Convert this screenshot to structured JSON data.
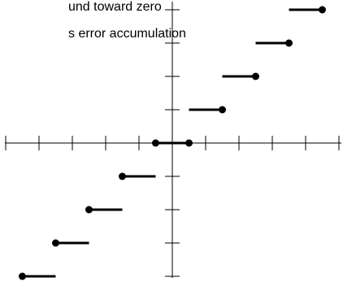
{
  "captions": {
    "line1": "und toward zero",
    "line2": "s error accumulation"
  },
  "colors": {
    "ink": "#000000",
    "background": "#ffffff"
  },
  "chart_data": {
    "type": "step",
    "rule": "truncation (round toward zero)",
    "xlim": [
      -5,
      5
    ],
    "ylim": [
      -4,
      4
    ],
    "x_ticks": [
      -5,
      -4,
      -3,
      -2,
      -1,
      1,
      2,
      3,
      4,
      5
    ],
    "y_ticks": [
      -4,
      -3,
      -2,
      -1,
      1,
      2,
      3,
      4
    ],
    "segments": [
      {
        "x_start": -4.5,
        "x_end": -3.5,
        "y": -4,
        "filled_end": "left"
      },
      {
        "x_start": -3.5,
        "x_end": -2.5,
        "y": -3,
        "filled_end": "left"
      },
      {
        "x_start": -2.5,
        "x_end": -1.5,
        "y": -2,
        "filled_end": "left"
      },
      {
        "x_start": -1.5,
        "x_end": -0.5,
        "y": -1,
        "filled_end": "left"
      },
      {
        "x_start": -0.5,
        "x_end": 0.5,
        "y": 0,
        "filled_end": "both"
      },
      {
        "x_start": 0.5,
        "x_end": 1.5,
        "y": 1,
        "filled_end": "right"
      },
      {
        "x_start": 1.5,
        "x_end": 2.5,
        "y": 2,
        "filled_end": "right"
      },
      {
        "x_start": 2.5,
        "x_end": 3.5,
        "y": 3,
        "filled_end": "right"
      },
      {
        "x_start": 3.5,
        "x_end": 4.5,
        "y": 4,
        "filled_end": "right"
      }
    ]
  }
}
